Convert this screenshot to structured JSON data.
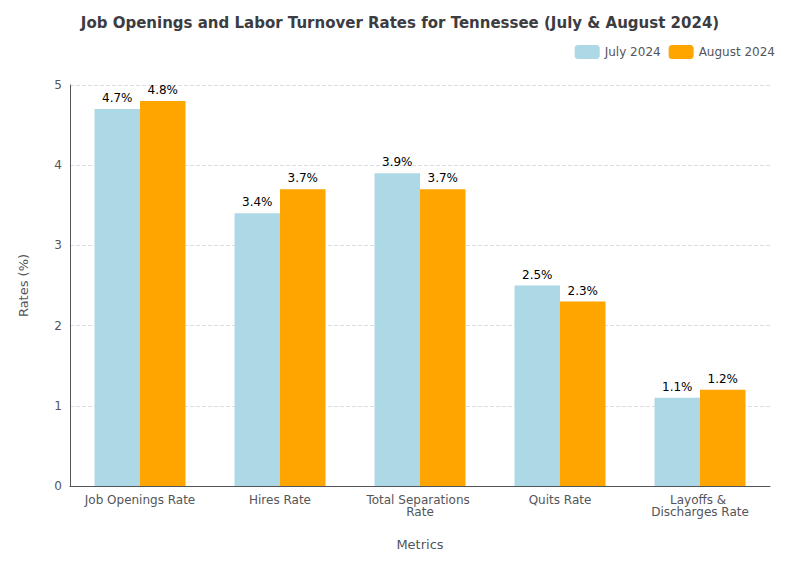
{
  "chart_data": {
    "type": "bar",
    "title": "Job Openings and Labor Turnover Rates for Tennessee (July & August 2024)",
    "xlabel": "Metrics",
    "ylabel": "Rates (%)",
    "categories": [
      "Job Openings Rate",
      "Hires Rate",
      "Total Separations Rate",
      "Quits Rate",
      "Layoffs & Discharges Rate"
    ],
    "series": [
      {
        "name": "July 2024",
        "color": "#ADD8E6",
        "values": [
          4.7,
          3.4,
          3.9,
          2.5,
          1.1
        ],
        "value_labels": [
          "4.7%",
          "3.4%",
          "3.9%",
          "2.5%",
          "1.1%"
        ]
      },
      {
        "name": "August 2024",
        "color": "#FFA500",
        "values": [
          4.8,
          3.7,
          3.7,
          2.3,
          1.2
        ],
        "value_labels": [
          "4.8%",
          "3.7%",
          "3.7%",
          "2.3%",
          "1.2%"
        ]
      }
    ],
    "ylim": [
      0,
      5
    ],
    "yticks": [
      0,
      1,
      2,
      3,
      4,
      5
    ],
    "grid": true,
    "legend": "upper right",
    "data_labels": true
  }
}
